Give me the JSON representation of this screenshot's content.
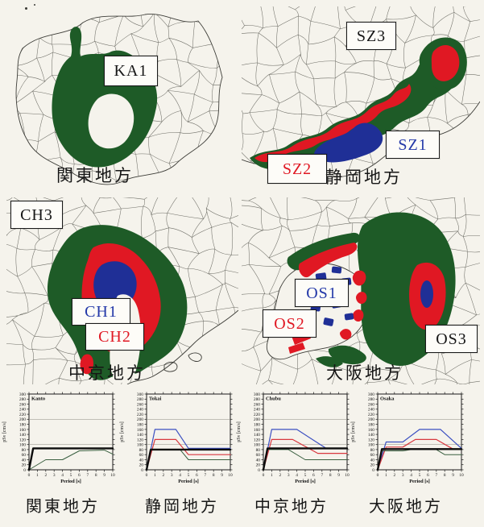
{
  "colors": {
    "paper": "#f5f3ec",
    "zone_green": "#1e5b27",
    "zone_red": "#e01823",
    "zone_blue": "#1f2f96",
    "boundary_gray": "#4d4d46",
    "label_black": "#161616",
    "label_blue": "#2338a8",
    "label_red": "#e01823"
  },
  "figure": {
    "maps": [
      {
        "title": "関東地方",
        "zone_labels": [
          {
            "text": "KA1",
            "color": "#161616"
          }
        ]
      },
      {
        "title": "静岡地方",
        "zone_labels": [
          {
            "text": "SZ3",
            "color": "#161616"
          },
          {
            "text": "SZ1",
            "color": "#2338a8"
          },
          {
            "text": "SZ2",
            "color": "#e01823"
          }
        ]
      },
      {
        "title": "中京地方",
        "zone_labels": [
          {
            "text": "CH3",
            "color": "#161616"
          },
          {
            "text": "CH1",
            "color": "#2338a8"
          },
          {
            "text": "CH2",
            "color": "#e01823"
          }
        ]
      },
      {
        "title": "大阪地方",
        "zone_labels": [
          {
            "text": "OS1",
            "color": "#2338a8"
          },
          {
            "text": "OS2",
            "color": "#e01823"
          },
          {
            "text": "OS3",
            "color": "#161616"
          }
        ]
      }
    ]
  },
  "chart_data": [
    {
      "type": "line",
      "inner_label": "Kanto",
      "title": "関東地方",
      "xlabel": "Period [s]",
      "ylabel": "pSv [cm/s]",
      "xlim": [
        0,
        10
      ],
      "ylim": [
        0,
        300
      ],
      "xtick_step": 1,
      "ytick_step": 20,
      "gridlines_y": [
        100,
        200
      ],
      "legend": "none",
      "series": [
        {
          "name": "KA1-green",
          "color": "#3a6040",
          "width": 1,
          "points": [
            [
              0,
              0
            ],
            [
              2,
              40
            ],
            [
              4,
              40
            ],
            [
              6,
              75
            ],
            [
              9,
              78
            ],
            [
              10,
              62
            ]
          ]
        },
        {
          "name": "design-spectrum-black",
          "color": "#0c0c0c",
          "width": 2.4,
          "points": [
            [
              0,
              0
            ],
            [
              0.5,
              85
            ],
            [
              10,
              85
            ]
          ]
        }
      ]
    },
    {
      "type": "line",
      "inner_label": "Tokai",
      "title": "静岡地方",
      "xlabel": "Period [s]",
      "ylabel": "pSv [cm/s]",
      "xlim": [
        0,
        10
      ],
      "ylim": [
        0,
        300
      ],
      "xtick_step": 1,
      "ytick_step": 20,
      "gridlines_y": [
        100,
        200
      ],
      "legend": "none",
      "series": [
        {
          "name": "SZ1-blue",
          "color": "#3b4fc1",
          "width": 1.2,
          "points": [
            [
              0,
              0
            ],
            [
              1,
              160
            ],
            [
              3.5,
              160
            ],
            [
              5,
              85
            ],
            [
              10,
              85
            ]
          ]
        },
        {
          "name": "SZ2-red",
          "color": "#d8383f",
          "width": 1.2,
          "points": [
            [
              0,
              0
            ],
            [
              1,
              120
            ],
            [
              3.5,
              120
            ],
            [
              5,
              60
            ],
            [
              10,
              60
            ]
          ]
        },
        {
          "name": "SZ3-green",
          "color": "#3a6040",
          "width": 1,
          "points": [
            [
              0,
              0
            ],
            [
              0.5,
              80
            ],
            [
              4,
              80
            ],
            [
              5,
              40
            ],
            [
              10,
              40
            ]
          ]
        },
        {
          "name": "design-spectrum-black",
          "color": "#0c0c0c",
          "width": 2.4,
          "points": [
            [
              0,
              0
            ],
            [
              0.5,
              80
            ],
            [
              10,
              80
            ]
          ]
        }
      ]
    },
    {
      "type": "line",
      "inner_label": "Chubu",
      "title": "中京地方",
      "xlabel": "Period [s]",
      "ylabel": "pSv [cm/s]",
      "xlim": [
        0,
        10
      ],
      "ylim": [
        0,
        300
      ],
      "xtick_step": 1,
      "ytick_step": 20,
      "gridlines_y": [
        100,
        200
      ],
      "legend": "none",
      "series": [
        {
          "name": "CH1-blue",
          "color": "#3b4fc1",
          "width": 1.2,
          "points": [
            [
              0,
              0
            ],
            [
              1,
              160
            ],
            [
              4,
              160
            ],
            [
              7.5,
              85
            ],
            [
              10,
              85
            ]
          ]
        },
        {
          "name": "CH2-red",
          "color": "#d8383f",
          "width": 1.2,
          "points": [
            [
              0,
              0
            ],
            [
              1,
              120
            ],
            [
              3.5,
              120
            ],
            [
              6.5,
              65
            ],
            [
              10,
              65
            ]
          ]
        },
        {
          "name": "CH3-green",
          "color": "#3a6040",
          "width": 1,
          "points": [
            [
              0,
              0
            ],
            [
              0.5,
              80
            ],
            [
              3,
              80
            ],
            [
              5,
              40
            ],
            [
              10,
              40
            ]
          ]
        },
        {
          "name": "design-spectrum-black",
          "color": "#0c0c0c",
          "width": 2.4,
          "points": [
            [
              0,
              0
            ],
            [
              0.5,
              85
            ],
            [
              10,
              85
            ]
          ]
        }
      ]
    },
    {
      "type": "line",
      "inner_label": "Osaka",
      "title": "大阪地方",
      "xlabel": "Period [s]",
      "ylabel": "pSv [cm/s]",
      "xlim": [
        0,
        10
      ],
      "ylim": [
        0,
        300
      ],
      "xtick_step": 1,
      "ytick_step": 20,
      "gridlines_y": [
        100,
        200
      ],
      "legend": "none",
      "series": [
        {
          "name": "OS1-blue",
          "color": "#3b4fc1",
          "width": 1.2,
          "points": [
            [
              0,
              0
            ],
            [
              1,
              110
            ],
            [
              3,
              110
            ],
            [
              5,
              160
            ],
            [
              7.5,
              160
            ],
            [
              10,
              85
            ]
          ]
        },
        {
          "name": "OS2-red",
          "color": "#d8383f",
          "width": 1.2,
          "points": [
            [
              0,
              0
            ],
            [
              1,
              90
            ],
            [
              3,
              90
            ],
            [
              4.5,
              120
            ],
            [
              7,
              120
            ],
            [
              9,
              82
            ],
            [
              10,
              82
            ]
          ]
        },
        {
          "name": "OS3-green",
          "color": "#3a6040",
          "width": 1,
          "points": [
            [
              0,
              0
            ],
            [
              0.5,
              75
            ],
            [
              3,
              75
            ],
            [
              4,
              80
            ],
            [
              7,
              80
            ],
            [
              8,
              60
            ],
            [
              10,
              60
            ]
          ]
        },
        {
          "name": "design-spectrum-black",
          "color": "#0c0c0c",
          "width": 2.4,
          "points": [
            [
              0,
              0
            ],
            [
              0.5,
              82
            ],
            [
              10,
              82
            ]
          ]
        }
      ]
    }
  ]
}
